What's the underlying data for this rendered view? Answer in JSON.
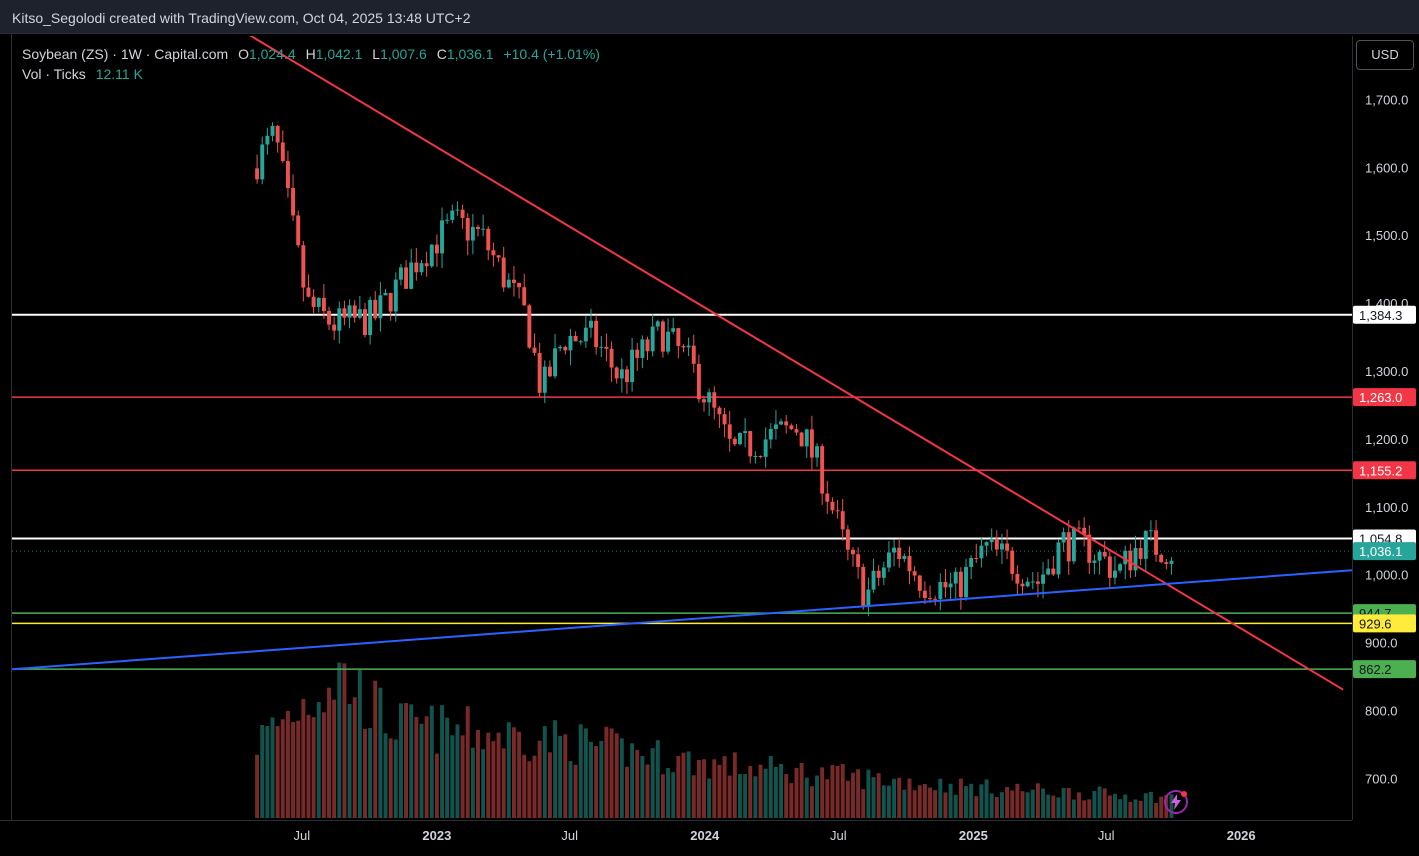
{
  "header": {
    "credit": "Kitso_Segolodi created with TradingView.com, Oct 04, 2025 13:48 UTC+2"
  },
  "legend": {
    "symbol": "Soybean (ZS) · 1W · Capital.com",
    "o_label": "O",
    "o_value": "1,024.4",
    "h_label": "H",
    "h_value": "1,042.1",
    "l_label": "L",
    "l_value": "1,007.6",
    "c_label": "C",
    "c_value": "1,036.1",
    "change": "+10.4 (+1.01%)",
    "vol_label": "Vol · Ticks",
    "vol_value": "12.11 K"
  },
  "currency": "USD",
  "colors": {
    "up": "#26a69a",
    "down": "#ef5350",
    "trend_down_line": "#f23645",
    "trend_up_line": "#2962ff",
    "white_level": "#ffffff",
    "red_level": "#f23645",
    "green_level": "#4caf50",
    "yellow_level": "#ffeb3b"
  },
  "chart_data": {
    "type": "candlestick",
    "title": "Soybean (ZS) · 1W · Capital.com",
    "x_axis": {
      "ticks": [
        "Jul",
        "2023",
        "Jul",
        "2024",
        "Jul",
        "2025",
        "Jul",
        "2026"
      ],
      "tick_dates": [
        "2022-07-01",
        "2023-01-01",
        "2023-07-01",
        "2024-01-01",
        "2024-07-01",
        "2025-01-01",
        "2025-07-01",
        "2026-01-01"
      ],
      "range": [
        "2021-06-01",
        "2026-06-01"
      ]
    },
    "y_axis": {
      "ticks": [
        "1,700.0",
        "1,600.0",
        "1,500.0",
        "1,400.0",
        "1,300.0",
        "1,200.0",
        "1,100.0",
        "1,000.0",
        "900.0",
        "800.0",
        "700.0"
      ],
      "tick_values": [
        1700,
        1600,
        1500,
        1400,
        1300,
        1200,
        1100,
        1000,
        900,
        800,
        700
      ],
      "range": [
        640,
        1795
      ],
      "unit": "USD"
    },
    "last_close": {
      "value": 1036.1,
      "label": "1,036.1"
    },
    "horizontal_levels": [
      {
        "value": 1384.3,
        "label": "1,384.3",
        "color": "#ffffff",
        "kind": "white"
      },
      {
        "value": 1263.0,
        "label": "1,263.0",
        "color": "#f23645",
        "kind": "red"
      },
      {
        "value": 1155.2,
        "label": "1,155.2",
        "color": "#f23645",
        "kind": "red"
      },
      {
        "value": 1054.8,
        "label": "1,054.8",
        "color": "#ffffff",
        "kind": "white"
      },
      {
        "value": 944.7,
        "label": "944.7",
        "color": "#4caf50",
        "kind": "green"
      },
      {
        "value": 929.6,
        "label": "929.6",
        "color": "#ffeb3b",
        "kind": "yellow"
      },
      {
        "value": 862.2,
        "label": "862.2",
        "color": "#4caf50",
        "kind": "green"
      }
    ],
    "trendlines": [
      {
        "name": "",
        "color": "#f23645",
        "points": [
          [
            "2022-04-15",
            1800
          ],
          [
            "2026-05-20",
            832
          ]
        ]
      },
      {
        "name": "",
        "color": "#2962ff",
        "points": [
          [
            "2021-06-01",
            862
          ],
          [
            "2026-06-01",
            1008
          ]
        ]
      }
    ],
    "price_anchors": [
      {
        "date": "2022-05-01",
        "price": 1600
      },
      {
        "date": "2022-06-01",
        "price": 1650
      },
      {
        "date": "2022-07-15",
        "price": 1400
      },
      {
        "date": "2022-08-20",
        "price": 1370
      },
      {
        "date": "2022-10-15",
        "price": 1380
      },
      {
        "date": "2022-12-15",
        "price": 1470
      },
      {
        "date": "2023-02-01",
        "price": 1520
      },
      {
        "date": "2023-03-10",
        "price": 1500
      },
      {
        "date": "2023-05-10",
        "price": 1380
      },
      {
        "date": "2023-05-31",
        "price": 1270
      },
      {
        "date": "2023-06-30",
        "price": 1350
      },
      {
        "date": "2023-08-10",
        "price": 1350
      },
      {
        "date": "2023-09-15",
        "price": 1290
      },
      {
        "date": "2023-11-10",
        "price": 1360
      },
      {
        "date": "2023-12-20",
        "price": 1310
      },
      {
        "date": "2024-02-15",
        "price": 1180
      },
      {
        "date": "2024-03-25",
        "price": 1200
      },
      {
        "date": "2024-05-15",
        "price": 1220
      },
      {
        "date": "2024-06-15",
        "price": 1150
      },
      {
        "date": "2024-07-20",
        "price": 1030
      },
      {
        "date": "2024-08-15",
        "price": 970
      },
      {
        "date": "2024-09-25",
        "price": 1040
      },
      {
        "date": "2024-11-01",
        "price": 990
      },
      {
        "date": "2024-12-15",
        "price": 980
      },
      {
        "date": "2025-01-25",
        "price": 1040
      },
      {
        "date": "2025-03-01",
        "price": 1020
      },
      {
        "date": "2025-04-05",
        "price": 990
      },
      {
        "date": "2025-05-10",
        "price": 1050
      },
      {
        "date": "2025-06-15",
        "price": 1040
      },
      {
        "date": "2025-07-25",
        "price": 1005
      },
      {
        "date": "2025-08-25",
        "price": 1050
      },
      {
        "date": "2025-10-04",
        "price": 1036
      }
    ],
    "volume_anchors": [
      {
        "date": "2022-05-01",
        "volume": 0.45
      },
      {
        "date": "2022-08-20",
        "volume": 0.85
      },
      {
        "date": "2022-11-01",
        "volume": 0.55
      },
      {
        "date": "2023-03-01",
        "volume": 0.5
      },
      {
        "date": "2023-07-01",
        "volume": 0.45
      },
      {
        "date": "2024-01-01",
        "volume": 0.32
      },
      {
        "date": "2024-07-01",
        "volume": 0.25
      },
      {
        "date": "2025-01-01",
        "volume": 0.18
      },
      {
        "date": "2025-10-04",
        "volume": 0.12
      }
    ],
    "volume_max": 1.0
  }
}
